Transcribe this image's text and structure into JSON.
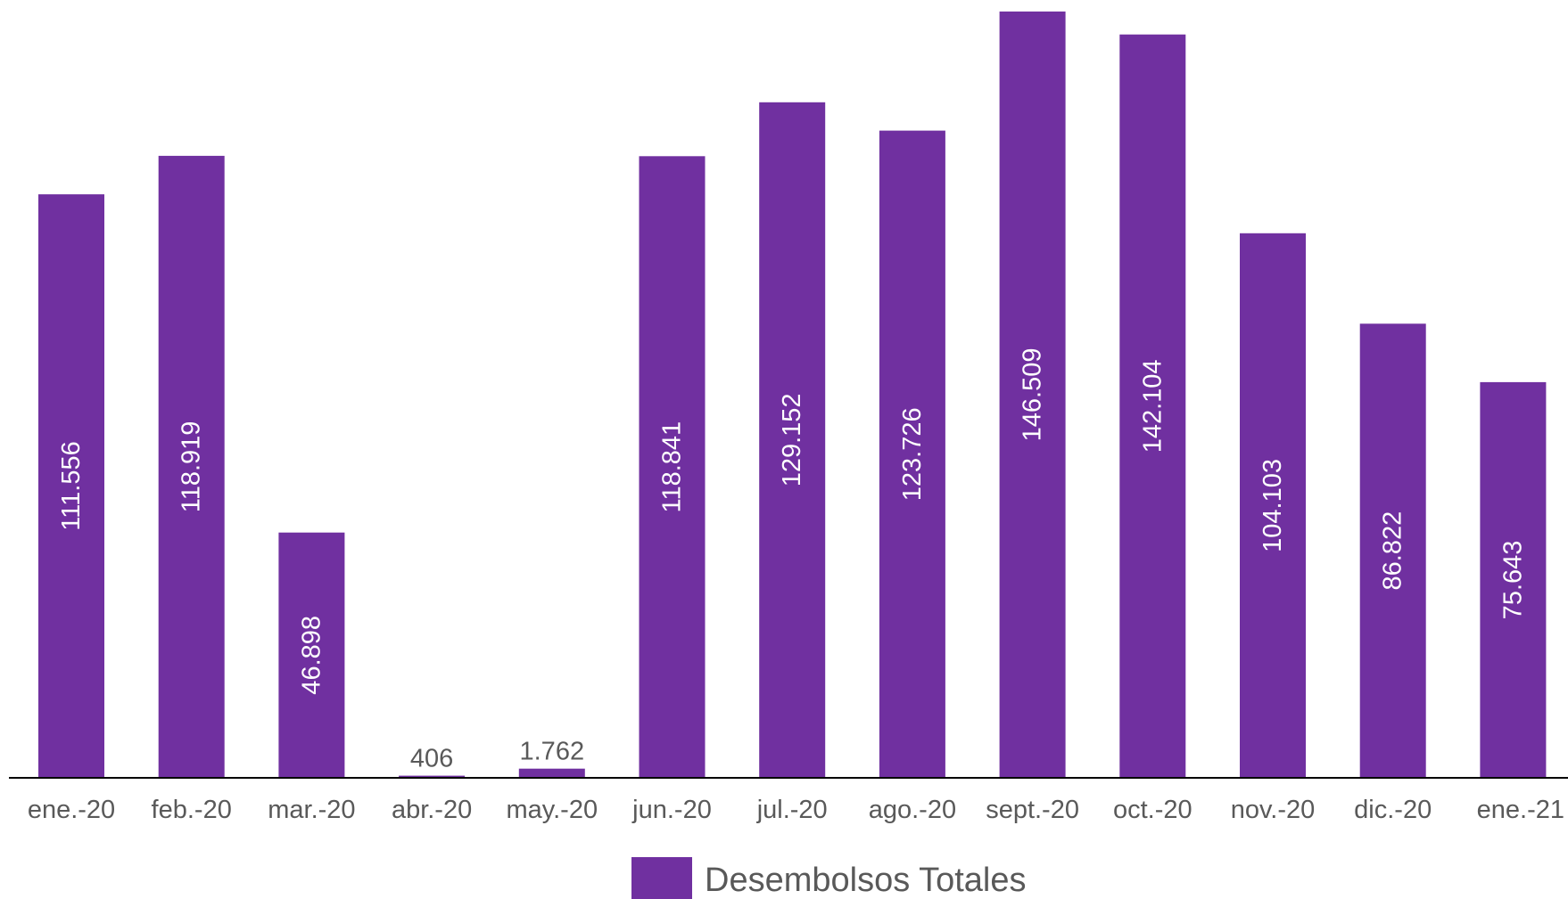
{
  "chart_data": {
    "type": "bar",
    "categories": [
      "ene.-20",
      "feb.-20",
      "mar.-20",
      "abr.-20",
      "may.-20",
      "jun.-20",
      "jul.-20",
      "ago.-20",
      "sept.-20",
      "oct.-20",
      "nov.-20",
      "dic.-20",
      "ene.-21"
    ],
    "series": [
      {
        "name": "Desembolsos Totales",
        "values": [
          111556,
          118919,
          46898,
          406,
          1762,
          118841,
          129152,
          123726,
          146509,
          142104,
          104103,
          86822,
          75643
        ],
        "data_labels": [
          "111.556",
          "118.919",
          "46.898",
          "406",
          "1.762",
          "118.841",
          "129.152",
          "123.726",
          "146.509",
          "142.104",
          "104.103",
          "86.822",
          "75.643"
        ]
      }
    ],
    "ylim": [
      0,
      147000
    ],
    "grid": false,
    "legend_position": "bottom-center",
    "colors": {
      "bar": "#7030A0",
      "axis": "#000000",
      "inside_label": "#FFFFFF",
      "outside_label": "#595959",
      "tick_label": "#595959"
    }
  }
}
